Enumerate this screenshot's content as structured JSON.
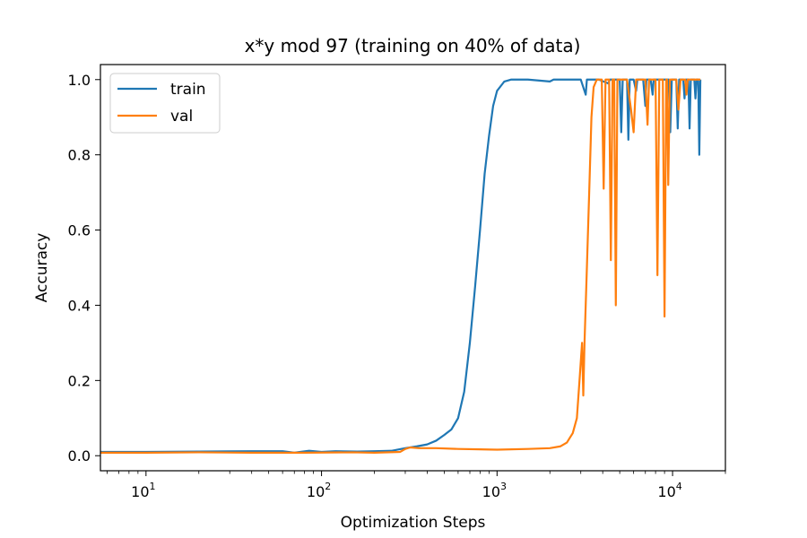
{
  "chart_data": {
    "type": "line",
    "title": "x*y mod 97 (training on 40% of data)",
    "xlabel": "Optimization Steps",
    "ylabel": "Accuracy",
    "xscale": "log",
    "xlim": [
      5.5,
      20000
    ],
    "ylim": [
      -0.04,
      1.04
    ],
    "grid": false,
    "legend_position": "top-left",
    "x_ticks": [
      {
        "value": 10,
        "base": "10",
        "exp": "1"
      },
      {
        "value": 100,
        "base": "10",
        "exp": "2"
      },
      {
        "value": 1000,
        "base": "10",
        "exp": "3"
      },
      {
        "value": 10000,
        "base": "10",
        "exp": "4"
      }
    ],
    "y_ticks": [
      {
        "value": 0.0,
        "label": "0.0"
      },
      {
        "value": 0.2,
        "label": "0.2"
      },
      {
        "value": 0.4,
        "label": "0.4"
      },
      {
        "value": 0.6,
        "label": "0.6"
      },
      {
        "value": 0.8,
        "label": "0.8"
      },
      {
        "value": 1.0,
        "label": "1.0"
      }
    ],
    "series": [
      {
        "name": "train",
        "color": "#1f77b4",
        "points": [
          [
            5.5,
            0.01
          ],
          [
            10,
            0.01
          ],
          [
            20,
            0.011
          ],
          [
            40,
            0.012
          ],
          [
            60,
            0.012
          ],
          [
            70,
            0.008
          ],
          [
            85,
            0.013
          ],
          [
            100,
            0.01
          ],
          [
            120,
            0.012
          ],
          [
            160,
            0.011
          ],
          [
            200,
            0.012
          ],
          [
            250,
            0.013
          ],
          [
            300,
            0.02
          ],
          [
            350,
            0.025
          ],
          [
            400,
            0.03
          ],
          [
            450,
            0.04
          ],
          [
            500,
            0.055
          ],
          [
            550,
            0.07
          ],
          [
            600,
            0.1
          ],
          [
            650,
            0.17
          ],
          [
            700,
            0.3
          ],
          [
            750,
            0.45
          ],
          [
            800,
            0.6
          ],
          [
            850,
            0.75
          ],
          [
            900,
            0.85
          ],
          [
            950,
            0.93
          ],
          [
            1000,
            0.97
          ],
          [
            1100,
            0.995
          ],
          [
            1200,
            1.0
          ],
          [
            1500,
            1.0
          ],
          [
            2000,
            0.995
          ],
          [
            2100,
            1.0
          ],
          [
            3000,
            1.0
          ],
          [
            3200,
            0.96
          ],
          [
            3250,
            1.0
          ],
          [
            3800,
            1.0
          ],
          [
            4300,
            0.99
          ],
          [
            4400,
            1.0
          ],
          [
            5000,
            1.0
          ],
          [
            5100,
            0.86
          ],
          [
            5200,
            1.0
          ],
          [
            5500,
            1.0
          ],
          [
            5600,
            0.84
          ],
          [
            5700,
            1.0
          ],
          [
            6000,
            1.0
          ],
          [
            6200,
            0.97
          ],
          [
            6300,
            1.0
          ],
          [
            6800,
            1.0
          ],
          [
            7000,
            0.93
          ],
          [
            7100,
            1.0
          ],
          [
            7500,
            1.0
          ],
          [
            7700,
            0.96
          ],
          [
            7800,
            1.0
          ],
          [
            9500,
            1.0
          ],
          [
            9700,
            0.86
          ],
          [
            9900,
            1.0
          ],
          [
            10500,
            1.0
          ],
          [
            10700,
            0.87
          ],
          [
            10900,
            1.0
          ],
          [
            11500,
            1.0
          ],
          [
            11700,
            0.95
          ],
          [
            11900,
            1.0
          ],
          [
            12300,
            1.0
          ],
          [
            12500,
            0.87
          ],
          [
            12700,
            1.0
          ],
          [
            13300,
            1.0
          ],
          [
            13500,
            0.95
          ],
          [
            13700,
            1.0
          ],
          [
            14000,
            1.0
          ],
          [
            14200,
            0.8
          ],
          [
            14400,
            1.0
          ]
        ]
      },
      {
        "name": "val",
        "color": "#ff7f0e",
        "points": [
          [
            5.5,
            0.008
          ],
          [
            10,
            0.008
          ],
          [
            20,
            0.009
          ],
          [
            40,
            0.008
          ],
          [
            80,
            0.008
          ],
          [
            150,
            0.009
          ],
          [
            200,
            0.008
          ],
          [
            280,
            0.01
          ],
          [
            300,
            0.018
          ],
          [
            320,
            0.022
          ],
          [
            360,
            0.02
          ],
          [
            450,
            0.02
          ],
          [
            600,
            0.018
          ],
          [
            800,
            0.017
          ],
          [
            1000,
            0.016
          ],
          [
            1500,
            0.018
          ],
          [
            2000,
            0.02
          ],
          [
            2300,
            0.025
          ],
          [
            2500,
            0.035
          ],
          [
            2700,
            0.06
          ],
          [
            2850,
            0.1
          ],
          [
            2950,
            0.2
          ],
          [
            3050,
            0.3
          ],
          [
            3100,
            0.16
          ],
          [
            3150,
            0.3
          ],
          [
            3250,
            0.5
          ],
          [
            3350,
            0.7
          ],
          [
            3450,
            0.9
          ],
          [
            3550,
            0.98
          ],
          [
            3700,
            1.0
          ],
          [
            3950,
            1.0
          ],
          [
            4050,
            0.71
          ],
          [
            4150,
            1.0
          ],
          [
            4350,
            1.0
          ],
          [
            4450,
            0.52
          ],
          [
            4550,
            1.0
          ],
          [
            4650,
            1.0
          ],
          [
            4750,
            0.4
          ],
          [
            4850,
            1.0
          ],
          [
            5500,
            1.0
          ],
          [
            5800,
            0.92
          ],
          [
            6000,
            0.86
          ],
          [
            6200,
            1.0
          ],
          [
            7000,
            1.0
          ],
          [
            7200,
            0.88
          ],
          [
            7350,
            1.0
          ],
          [
            8000,
            1.0
          ],
          [
            8200,
            0.48
          ],
          [
            8400,
            1.0
          ],
          [
            8800,
            1.0
          ],
          [
            9000,
            0.37
          ],
          [
            9200,
            1.0
          ],
          [
            9300,
            1.0
          ],
          [
            9450,
            0.72
          ],
          [
            9650,
            1.0
          ],
          [
            10500,
            1.0
          ],
          [
            10800,
            0.92
          ],
          [
            11100,
            1.0
          ],
          [
            11800,
            1.0
          ],
          [
            12000,
            0.96
          ],
          [
            12200,
            1.0
          ],
          [
            14400,
            1.0
          ]
        ]
      }
    ]
  }
}
